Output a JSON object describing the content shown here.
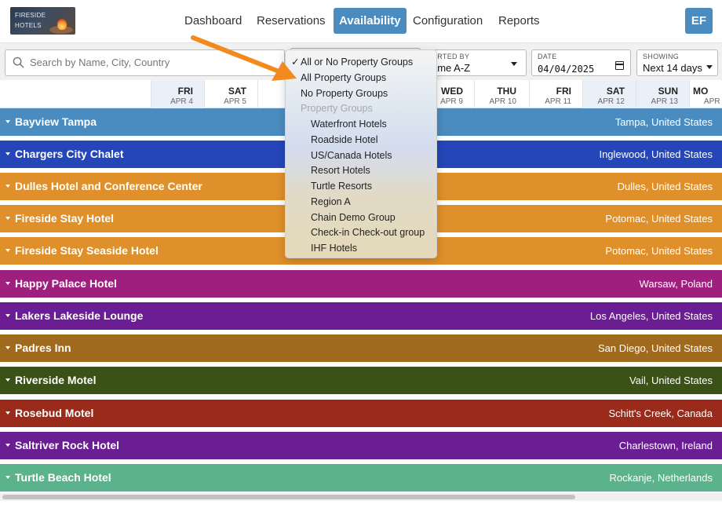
{
  "logo": {
    "line1": "FIRESIDE",
    "line2": "HOTELS"
  },
  "nav": {
    "items": [
      {
        "label": "Dashboard",
        "active": false
      },
      {
        "label": "Reservations",
        "active": false
      },
      {
        "label": "Availability",
        "active": true
      },
      {
        "label": "Configuration",
        "active": false
      },
      {
        "label": "Reports",
        "active": false
      }
    ],
    "avatar_initials": "EF"
  },
  "filters": {
    "search": {
      "placeholder": "Search by Name, City, Country",
      "icon": "search-icon"
    },
    "sort": {
      "label": "ORTED BY",
      "value": "ame A-Z"
    },
    "date": {
      "label": "DATE",
      "value": "04/04/2025",
      "icon": "calendar-icon"
    },
    "showing": {
      "label": "SHOWING",
      "value": "Next 14 days"
    }
  },
  "dropdown": {
    "options": [
      {
        "label": "All or No Property Groups",
        "checked": true,
        "sub": false,
        "disabled": false
      },
      {
        "label": "All Property Groups",
        "checked": false,
        "sub": false,
        "disabled": false
      },
      {
        "label": "No Property Groups",
        "checked": false,
        "sub": false,
        "disabled": false
      },
      {
        "label": "Property Groups",
        "checked": false,
        "sub": false,
        "disabled": true
      },
      {
        "label": "Waterfront Hotels",
        "checked": false,
        "sub": true,
        "disabled": false
      },
      {
        "label": "Roadside Hotel",
        "checked": false,
        "sub": true,
        "disabled": false
      },
      {
        "label": "US/Canada Hotels",
        "checked": false,
        "sub": true,
        "disabled": false
      },
      {
        "label": "Resort Hotels",
        "checked": false,
        "sub": true,
        "disabled": false
      },
      {
        "label": "Turtle Resorts",
        "checked": false,
        "sub": true,
        "disabled": false
      },
      {
        "label": "Region A",
        "checked": false,
        "sub": true,
        "disabled": false
      },
      {
        "label": "Chain Demo Group",
        "checked": false,
        "sub": true,
        "disabled": false
      },
      {
        "label": "Check-in Check-out group",
        "checked": false,
        "sub": true,
        "disabled": false
      },
      {
        "label": "IHF Hotels",
        "checked": false,
        "sub": true,
        "disabled": false
      }
    ],
    "check_glyph": "✓"
  },
  "dates": [
    {
      "dow": "FRI",
      "date": "APR 4"
    },
    {
      "dow": "SAT",
      "date": "APR 5"
    },
    {
      "dow": "S",
      "date": "A"
    },
    {
      "dow": "",
      "date": ""
    },
    {
      "dow": "",
      "date": ""
    },
    {
      "dow": "WED",
      "date": "APR 9"
    },
    {
      "dow": "THU",
      "date": "APR 10"
    },
    {
      "dow": "FRI",
      "date": "APR 11"
    },
    {
      "dow": "SAT",
      "date": "APR 12"
    },
    {
      "dow": "SUN",
      "date": "APR 13"
    },
    {
      "dow": "MO",
      "date": "APR"
    }
  ],
  "hotels": [
    {
      "name": "Bayview Tampa",
      "location": "Tampa, United States",
      "color": "#4a8cc0"
    },
    {
      "name": "Chargers City Chalet",
      "location": "Inglewood, United States",
      "color": "#2446b8"
    },
    {
      "name": "Dulles Hotel and Conference Center",
      "location": "Dulles, United States",
      "color": "#e0902a"
    },
    {
      "name": "Fireside Stay Hotel",
      "location": "Potomac, United States",
      "color": "#e0902a"
    },
    {
      "name": "Fireside Stay Seaside Hotel",
      "location": "Potomac, United States",
      "color": "#e0902a"
    },
    {
      "name": "Happy Palace Hotel",
      "location": "Warsaw, Poland",
      "color": "#9e1f7e"
    },
    {
      "name": "Lakers Lakeside Lounge",
      "location": "Los Angeles, United States",
      "color": "#6b1e93"
    },
    {
      "name": "Padres Inn",
      "location": "San Diego, United States",
      "color": "#a06a1e"
    },
    {
      "name": "Riverside Motel",
      "location": "Vail, United States",
      "color": "#3a5216"
    },
    {
      "name": "Rosebud Motel",
      "location": "Schitt's Creek, Canada",
      "color": "#9a2a1a"
    },
    {
      "name": "Saltriver Rock Hotel",
      "location": "Charlestown, Ireland",
      "color": "#6b1e93"
    },
    {
      "name": "Turtle Beach Hotel",
      "location": "Rockanje, Netherlands",
      "color": "#5ab38a"
    }
  ],
  "colors": {
    "accent": "#4a8cc0",
    "annotation_arrow": "#f28a1e"
  }
}
